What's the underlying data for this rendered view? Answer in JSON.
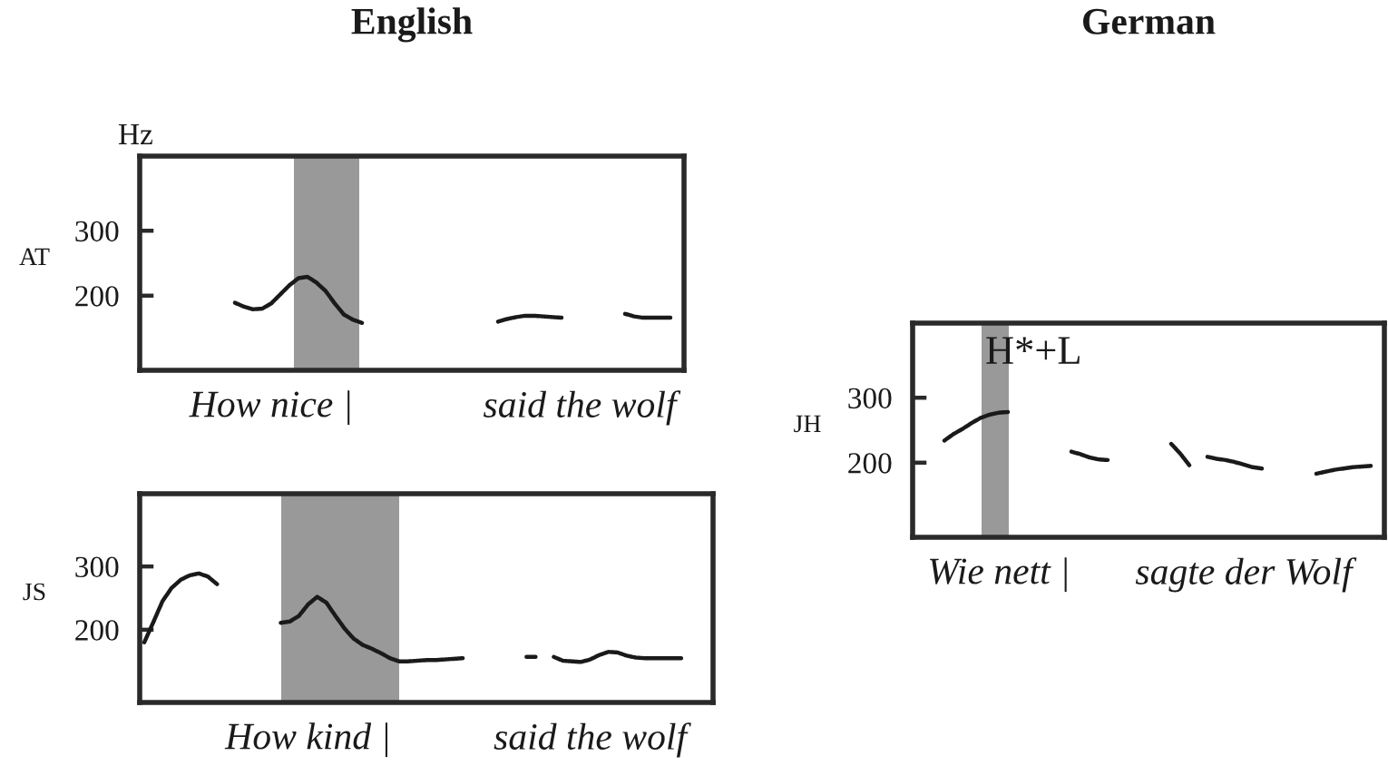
{
  "chart_data": [
    {
      "type": "line",
      "title": "English",
      "ylabel": "AT",
      "annotations": [
        "Hz"
      ],
      "color": "#1a1a1a",
      "line_style": "solid",
      "ylim": [
        85,
        415
      ],
      "yticks": [
        200,
        300
      ],
      "categories": [
        null,
        null,
        null,
        null,
        null,
        null,
        null,
        null,
        null,
        null,
        null,
        null,
        null,
        null,
        "How nice |",
        null,
        null,
        null,
        null,
        null,
        null,
        null,
        null,
        null,
        null,
        null,
        null,
        null,
        null,
        null,
        null,
        null,
        null,
        null,
        null,
        null,
        null,
        null,
        null,
        null,
        null,
        null,
        null,
        null,
        null,
        null,
        null,
        null,
        "said the wolf",
        null,
        null,
        null,
        null,
        null,
        null,
        null,
        null,
        null,
        null,
        null
      ],
      "values": [
        null,
        null,
        null,
        null,
        null,
        null,
        null,
        null,
        null,
        null,
        189,
        183,
        179,
        180,
        188,
        202,
        216,
        227,
        229,
        220,
        207,
        188,
        171,
        163,
        158,
        null,
        null,
        null,
        null,
        null,
        null,
        null,
        null,
        null,
        null,
        null,
        null,
        null,
        null,
        160,
        164,
        167,
        169,
        169,
        168,
        167,
        166,
        null,
        null,
        null,
        null,
        null,
        null,
        172,
        168,
        166,
        166,
        166,
        166,
        null
      ]
    },
    {
      "type": "line",
      "ylabel": "JS",
      "color": "#1a1a1a",
      "line_style": "solid",
      "ylim": [
        85,
        415
      ],
      "yticks": [
        200,
        300
      ],
      "categories": [
        null,
        null,
        null,
        null,
        null,
        null,
        null,
        null,
        null,
        null,
        null,
        null,
        null,
        null,
        null,
        null,
        null,
        null,
        "How kind |",
        null,
        null,
        null,
        null,
        null,
        null,
        null,
        null,
        null,
        null,
        null,
        null,
        null,
        null,
        null,
        null,
        null,
        null,
        null,
        null,
        null,
        null,
        null,
        null,
        null,
        null,
        null,
        null,
        null,
        null,
        "said the wolf",
        null,
        null,
        null,
        null,
        null,
        null,
        null,
        null,
        null,
        null,
        null,
        null,
        null
      ],
      "values": [
        180,
        212,
        245,
        266,
        279,
        286,
        289,
        284,
        272,
        null,
        null,
        null,
        null,
        null,
        null,
        211,
        213,
        222,
        240,
        252,
        243,
        222,
        202,
        186,
        176,
        170,
        163,
        155,
        150,
        150,
        151,
        152,
        152,
        153,
        154,
        155,
        null,
        null,
        null,
        null,
        null,
        null,
        157,
        157,
        null,
        157,
        151,
        150,
        149,
        153,
        160,
        165,
        164,
        159,
        156,
        155,
        155,
        155,
        155,
        155,
        null,
        null,
        null
      ]
    },
    {
      "type": "line",
      "title": "German",
      "ylabel": "JH",
      "annotations": [
        "H*+L"
      ],
      "color": "#1a1a1a",
      "line_style": "solid",
      "ylim": [
        85,
        415
      ],
      "yticks": [
        200,
        300
      ],
      "categories": [
        null,
        null,
        null,
        null,
        null,
        null,
        null,
        null,
        null,
        "Wie nett |",
        null,
        null,
        null,
        null,
        null,
        null,
        null,
        null,
        null,
        null,
        null,
        null,
        null,
        null,
        null,
        null,
        null,
        null,
        null,
        null,
        null,
        null,
        null,
        null,
        null,
        null,
        "sagte der Wolf",
        null,
        null,
        null,
        null,
        null,
        null,
        null,
        null,
        null,
        null,
        null,
        null,
        null,
        null,
        null
      ],
      "values": [
        null,
        null,
        null,
        234,
        244,
        252,
        261,
        269,
        274,
        277,
        278,
        null,
        null,
        null,
        null,
        null,
        null,
        217,
        213,
        208,
        205,
        204,
        null,
        null,
        null,
        null,
        null,
        null,
        229,
        214,
        196,
        null,
        209,
        206,
        204,
        201,
        197,
        193,
        191,
        null,
        null,
        null,
        null,
        null,
        183,
        186,
        189,
        191,
        193,
        194,
        195,
        null
      ]
    }
  ]
}
